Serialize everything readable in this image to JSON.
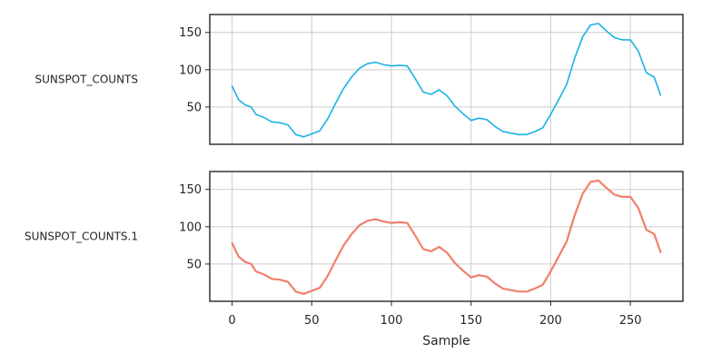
{
  "chart_data": {
    "type": "line",
    "xlabel": "Sample",
    "x_ticks": [
      0,
      50,
      100,
      150,
      200,
      250
    ],
    "y_ticks": [
      50,
      100,
      150
    ],
    "xlim": [
      -14,
      283
    ],
    "ylim": [
      0,
      174
    ],
    "grid": true,
    "panels": [
      {
        "name": "SUNSPOT_COUNTS",
        "color": "#1ab2e6",
        "stroke_width": 1.6,
        "x": [
          0,
          4,
          8,
          12,
          15,
          20,
          25,
          30,
          35,
          40,
          45,
          50,
          55,
          60,
          65,
          70,
          75,
          80,
          85,
          90,
          95,
          100,
          105,
          110,
          115,
          120,
          125,
          130,
          135,
          140,
          145,
          150,
          155,
          160,
          165,
          170,
          175,
          180,
          185,
          190,
          195,
          200,
          205,
          210,
          215,
          220,
          225,
          230,
          235,
          240,
          245,
          250,
          255,
          260,
          265,
          269
        ],
        "y": [
          78,
          60,
          53,
          50,
          40,
          36,
          30,
          29,
          26,
          13,
          10,
          14,
          18,
          34,
          55,
          75,
          90,
          102,
          108,
          110,
          107,
          105,
          106,
          105,
          88,
          70,
          67,
          73,
          65,
          51,
          41,
          32,
          35,
          33,
          24,
          17,
          15,
          13,
          13,
          17,
          22,
          40,
          60,
          80,
          115,
          144,
          160,
          162,
          152,
          143,
          140,
          140,
          125,
          96,
          90,
          66
        ]
      },
      {
        "name": "SUNSPOT_COUNTS.1",
        "color": "#f17f6c",
        "stroke_width": 2.2,
        "x": [
          0,
          4,
          8,
          12,
          15,
          20,
          25,
          30,
          35,
          40,
          45,
          50,
          55,
          60,
          65,
          70,
          75,
          80,
          85,
          90,
          95,
          100,
          105,
          110,
          115,
          120,
          125,
          130,
          135,
          140,
          145,
          150,
          155,
          160,
          165,
          170,
          175,
          180,
          185,
          190,
          195,
          200,
          205,
          210,
          215,
          220,
          225,
          230,
          235,
          240,
          245,
          250,
          255,
          260,
          265,
          269
        ],
        "y": [
          78,
          60,
          53,
          50,
          40,
          36,
          30,
          29,
          26,
          13,
          10,
          14,
          18,
          34,
          55,
          75,
          90,
          102,
          108,
          110,
          107,
          105,
          106,
          105,
          88,
          70,
          67,
          73,
          65,
          51,
          41,
          32,
          35,
          33,
          24,
          17,
          15,
          13,
          13,
          17,
          22,
          40,
          60,
          80,
          115,
          144,
          160,
          162,
          152,
          143,
          140,
          140,
          125,
          96,
          90,
          66
        ]
      }
    ]
  }
}
